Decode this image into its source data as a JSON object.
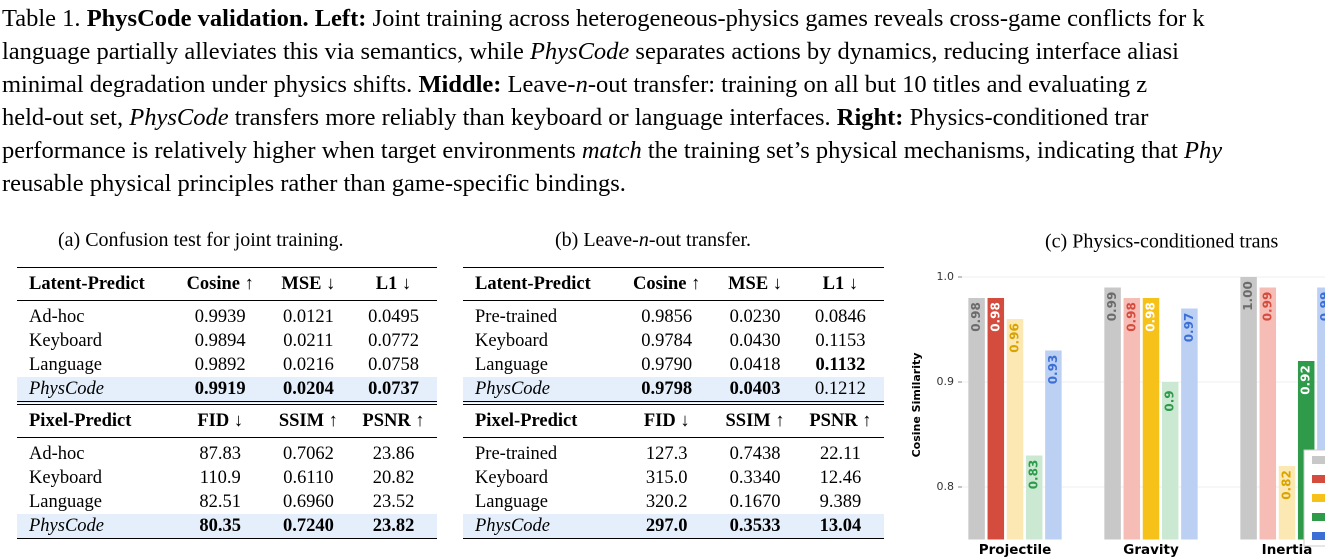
{
  "caption": {
    "lines": [
      [
        "Table 1. ",
        "PhysCode validation. Left:",
        " Joint training across heterogeneous-physics games reveals cross-game conflicts for k"
      ],
      [
        "language partially alleviates this via semantics, while ",
        "PhysCode",
        " separates actions by dynamics, reducing interface aliasi"
      ],
      [
        "minimal degradation under physics shifts.  ",
        "Middle:",
        " Leave-",
        "n",
        "-out transfer:  training on all but 10 titles and evaluating z"
      ],
      [
        "held-out set, ",
        "PhysCode",
        " transfers more reliably than keyboard or language interfaces.  ",
        "Right:",
        " Physics-conditioned trar"
      ],
      [
        "performance is relatively higher when target environments ",
        "match",
        " the training set’s physical mechanisms, indicating that ",
        "Phy"
      ],
      [
        "reusable physical principles rather than game-specific bindings."
      ]
    ]
  },
  "table_a": {
    "caption": "(a) Confusion test for joint training.",
    "latent": {
      "header": [
        "Latent-Predict",
        "Cosine ↑",
        "MSE ↓",
        "L1 ↓"
      ],
      "rows": [
        [
          "Ad-hoc",
          "0.9939",
          "0.0121",
          "0.0495"
        ],
        [
          "Keyboard",
          "0.9894",
          "0.0211",
          "0.0772"
        ],
        [
          "Language",
          "0.9892",
          "0.0216",
          "0.0758"
        ],
        [
          "PhysCode",
          "0.9919",
          "0.0204",
          "0.0737"
        ]
      ]
    },
    "pixel": {
      "header": [
        "Pixel-Predict",
        "FID ↓",
        "SSIM ↑",
        "PSNR ↑"
      ],
      "rows": [
        [
          "Ad-hoc",
          "87.83",
          "0.7062",
          "23.86"
        ],
        [
          "Keyboard",
          "110.9",
          "0.6110",
          "20.82"
        ],
        [
          "Language",
          "82.51",
          "0.6960",
          "23.52"
        ],
        [
          "PhysCode",
          "80.35",
          "0.7240",
          "23.82"
        ]
      ]
    }
  },
  "table_b": {
    "caption": [
      "(b) Leave-",
      "n",
      "-out transfer."
    ],
    "latent": {
      "header": [
        "Latent-Predict",
        "Cosine ↑",
        "MSE ↓",
        "L1 ↓"
      ],
      "rows": [
        [
          "Pre-trained",
          "0.9856",
          "0.0230",
          "0.0846"
        ],
        [
          "Keyboard",
          "0.9784",
          "0.0430",
          "0.1153"
        ],
        [
          "Language",
          "0.9790",
          "0.0418",
          "0.1132"
        ],
        [
          "PhysCode",
          "0.9798",
          "0.0403",
          "0.1212"
        ]
      ]
    },
    "pixel": {
      "header": [
        "Pixel-Predict",
        "FID ↓",
        "SSIM ↑",
        "PSNR ↑"
      ],
      "rows": [
        [
          "Pre-trained",
          "127.3",
          "0.7438",
          "22.11"
        ],
        [
          "Keyboard",
          "315.0",
          "0.3340",
          "12.46"
        ],
        [
          "Language",
          "320.2",
          "0.1670",
          "9.389"
        ],
        [
          "PhysCode",
          "297.0",
          "0.3533",
          "13.04"
        ]
      ]
    }
  },
  "chart_data": {
    "type": "bar",
    "title": "(c) Physics-conditioned trans",
    "ylabel": "Cosine Similarity",
    "categories": [
      "Projectile",
      "Gravity",
      "Inertia"
    ],
    "ylim": [
      0.75,
      1.01
    ],
    "yticks": [
      {
        "value": 1.0,
        "label": "1.0"
      },
      0.9,
      0.8
    ],
    "series": [
      {
        "color": "#c8c8c8",
        "bar_colors": [
          "#c8c8c8",
          "#c8c8c8",
          "#c8c8c8"
        ],
        "label_colors": [
          "#6b6b6b",
          "#6b6b6b",
          "#6b6b6b"
        ],
        "values": [
          0.98,
          0.99,
          1.0
        ],
        "value_labels": [
          "0.98",
          "0.99",
          "1.00"
        ]
      },
      {
        "color": "#d44c3e",
        "bar_colors": [
          "#d44c3e",
          "#f6bdb7",
          "#f6bdb7"
        ],
        "label_colors": [
          "#ffffff",
          "#d44c3e",
          "#d44c3e"
        ],
        "values": [
          0.98,
          0.98,
          0.99
        ]
      },
      {
        "color": "#f6c21a",
        "bar_colors": [
          "#fbe8b3",
          "#f6c21a",
          "#fbe8b3"
        ],
        "label_colors": [
          "#d9a400",
          "#ffffff",
          "#d9a400"
        ],
        "values": [
          0.96,
          0.98,
          0.82
        ]
      },
      {
        "color": "#2e9a4a",
        "bar_colors": [
          "#cbe9d2",
          "#cbe9d2",
          "#2e9a4a"
        ],
        "label_colors": [
          "#2e9a4a",
          "#2e9a4a",
          "#ffffff"
        ],
        "values": [
          0.83,
          0.9,
          0.92
        ]
      },
      {
        "color": "#3c6fd6",
        "bar_colors": [
          "#bcd0f4",
          "#bcd0f4",
          "#bcd0f4"
        ],
        "label_colors": [
          "#3c6fd6",
          "#3c6fd6",
          "#3c6fd6"
        ],
        "values": [
          0.93,
          0.97,
          0.99
        ]
      }
    ]
  }
}
